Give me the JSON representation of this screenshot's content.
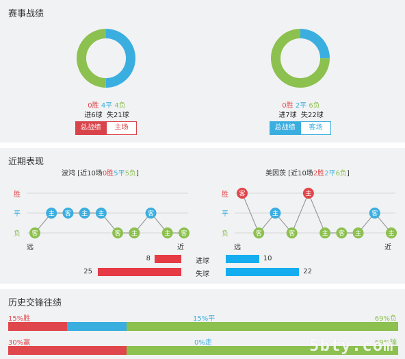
{
  "colors": {
    "win": "#e0474c",
    "draw": "#3baee0",
    "loss": "#8cc04f",
    "bar_blue": "#14aef0"
  },
  "section1": {
    "title": "赛事战绩",
    "left": {
      "donut": {
        "win": 0,
        "draw": 4,
        "loss": 4
      },
      "record": {
        "win": "0胜",
        "draw": "4平",
        "loss": "4负"
      },
      "goals": "进6球  失21球",
      "tab_active": "总战绩",
      "tab_other": "主场"
    },
    "right": {
      "donut": {
        "win": 0,
        "draw": 2,
        "loss": 6
      },
      "record": {
        "win": "0胜",
        "draw": "2平",
        "loss": "6负"
      },
      "goals": "进7球  失22球",
      "tab_active": "总战绩",
      "tab_other": "客场"
    }
  },
  "section2": {
    "title": "近期表现",
    "left": {
      "team": "波鸿",
      "summary_open": " [近10场",
      "wins": "0胜",
      "draws": "5平",
      "losses": "5负",
      "summary_close": "]",
      "axis": {
        "win": "胜",
        "draw": "平",
        "loss": "负"
      },
      "far": "远",
      "near": "近",
      "results": [
        "L",
        "D",
        "D",
        "D",
        "D",
        "L",
        "L",
        "D",
        "L",
        "L"
      ],
      "venues": [
        "客",
        "主",
        "客",
        "主",
        "主",
        "客",
        "主",
        "客",
        "主",
        "客"
      ]
    },
    "right": {
      "team": "美因茨",
      "summary_open": " [近10场",
      "wins": "2胜",
      "draws": "2平",
      "losses": "6负",
      "summary_close": "]",
      "axis": {
        "win": "胜",
        "draw": "平",
        "loss": "负"
      },
      "far": "远",
      "near": "近",
      "results": [
        "W",
        "L",
        "D",
        "L",
        "W",
        "L",
        "L",
        "L",
        "D",
        "L"
      ],
      "venues": [
        "客",
        "客",
        "主",
        "客",
        "主",
        "主",
        "客",
        "主",
        "客",
        "主"
      ]
    },
    "goals_for": {
      "label": "进球",
      "left": 8,
      "right": 10
    },
    "goals_against": {
      "label": "失球",
      "left": 25,
      "right": 22
    },
    "bar_scale_max": 25
  },
  "section3": {
    "title": "历史交锋往绩",
    "row1": {
      "win": 15,
      "draw": 15,
      "loss": 69,
      "win_label": "15%胜",
      "draw_label": "15%平",
      "loss_label": "69%负"
    },
    "row2": {
      "win": 30,
      "draw": 0,
      "loss": 69,
      "win_label": "30%赢",
      "draw_label": "0%走",
      "loss_label": "69%输"
    }
  },
  "watermark": "5bty.com"
}
